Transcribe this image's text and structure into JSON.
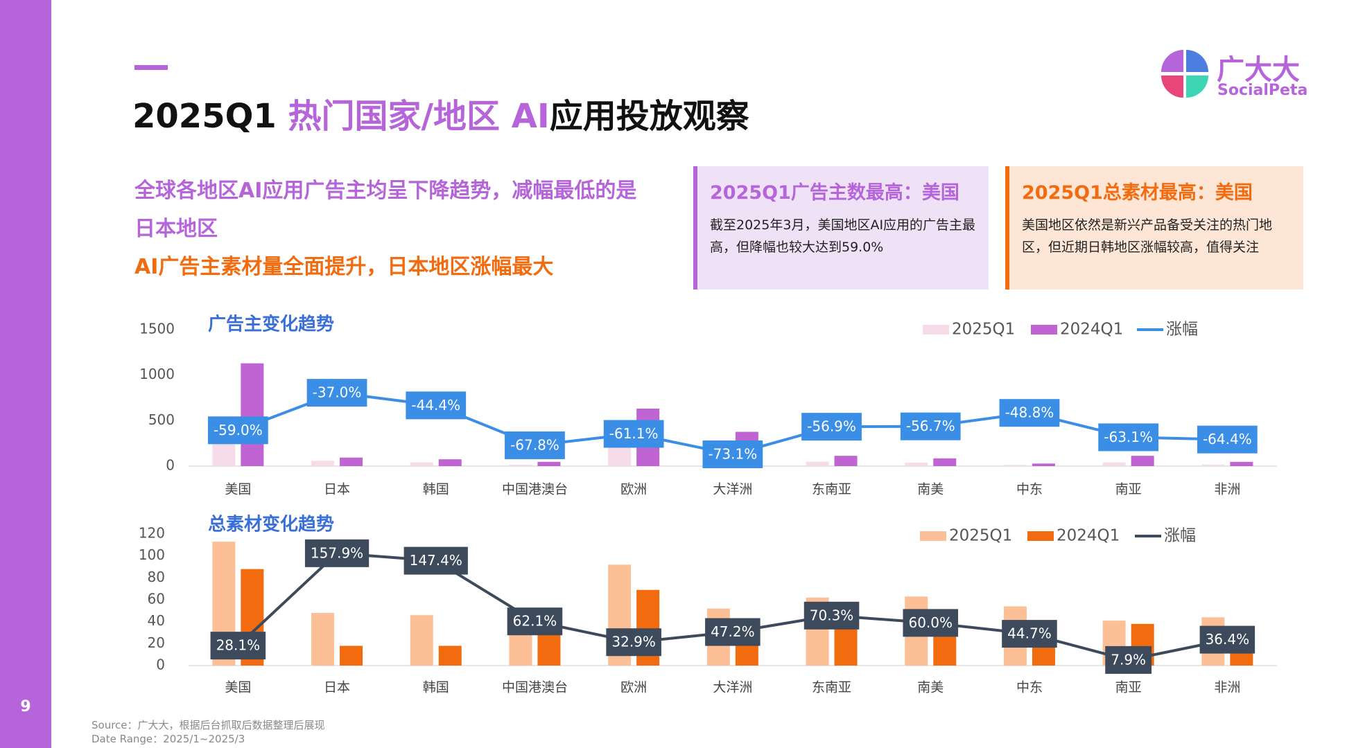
{
  "page_number": "9",
  "title": {
    "parts": [
      "2025Q1 ",
      "热门国家/地区 AI",
      "应用投放观察"
    ]
  },
  "logo": {
    "name": "广大大",
    "brand": "SocialPeta"
  },
  "summary": [
    "全球各地区AI应用广告主均呈下降趋势，减幅最低的是日本地区",
    "AI广告主素材量全面提升，日本地区涨幅最大"
  ],
  "callouts": [
    {
      "title": "2025Q1广告主数最高：美国",
      "body": "截至2025年3月，美国地区AI应用的广告主最高，但降幅也较大达到59.0%"
    },
    {
      "title": "2025Q1总素材最高：美国",
      "body": "美国地区依然是新兴产品备受关注的热门地区，但近期日韩地区涨幅较高，值得关注"
    }
  ],
  "chart_data": [
    {
      "type": "combo",
      "title": "广告主变化趋势",
      "legend": "top-right",
      "categories": [
        "美国",
        "日本",
        "韩国",
        "中国港澳台",
        "欧洲",
        "大洋洲",
        "东南亚",
        "南美",
        "中东",
        "南亚",
        "非洲"
      ],
      "series": [
        {
          "name": "2025Q1",
          "color": "#f6dce8",
          "values": [
            463,
            59,
            42,
            15,
            246,
            102,
            49,
            37,
            14,
            42,
            17
          ]
        },
        {
          "name": "2024Q1",
          "color": "#c064d4",
          "values": [
            1130,
            94,
            75,
            47,
            632,
            377,
            113,
            85,
            28,
            113,
            47
          ]
        },
        {
          "name": "涨幅",
          "color": "#3a8ee6",
          "type": "line",
          "axis": "y2",
          "label_color": "#3a8ee6",
          "values": [
            -59.0,
            -37.0,
            -44.4,
            -67.8,
            -61.1,
            -73.1,
            -56.9,
            -56.7,
            -48.8,
            -63.1,
            -64.4
          ],
          "value_labels": [
            "-59.0%",
            "-37.0%",
            "-44.4%",
            "-67.8%",
            "-61.1%",
            "-73.1%",
            "-56.9%",
            "-56.7%",
            "-48.8%",
            "-63.1%",
            "-64.4%"
          ]
        }
      ],
      "ylim": [
        0,
        1500
      ],
      "yticks": [
        0,
        500,
        1000,
        1500
      ],
      "y2lim": [
        -80,
        0
      ]
    },
    {
      "type": "combo",
      "title": "总素材变化趋势",
      "legend": "top-right",
      "categories": [
        "美国",
        "日本",
        "韩国",
        "中国港澳台",
        "欧洲",
        "大洋洲",
        "东南亚",
        "南美",
        "中东",
        "南亚",
        "非洲"
      ],
      "series": [
        {
          "name": "2025Q1",
          "color": "#fdbf95",
          "values": [
            113,
            48,
            46,
            46,
            92,
            52,
            62,
            63,
            54,
            41,
            44
          ]
        },
        {
          "name": "2024Q1",
          "color": "#f26b0f",
          "values": [
            88,
            18,
            18,
            28,
            69,
            35,
            36,
            39,
            37,
            38,
            32
          ]
        },
        {
          "name": "涨幅",
          "color": "#3d4a5c",
          "type": "line",
          "axis": "y2",
          "label_color": "#3d4a5c",
          "values": [
            28.1,
            157.9,
            147.4,
            62.1,
            32.9,
            47.2,
            70.3,
            60.0,
            44.7,
            7.9,
            36.4
          ],
          "value_labels": [
            "28.1%",
            "157.9%",
            "147.4%",
            "62.1%",
            "32.9%",
            "47.2%",
            "70.3%",
            "60.0%",
            "44.7%",
            "7.9%",
            "36.4%"
          ]
        }
      ],
      "ylim": [
        0,
        120
      ],
      "yticks": [
        0,
        20,
        40,
        60,
        80,
        100,
        120
      ],
      "y2lim": [
        0,
        185
      ]
    }
  ],
  "footer": {
    "source": "Source：广大大，根据后台抓取后数据整理后展现",
    "date_range": "Date Range：2025/1~2025/3"
  }
}
